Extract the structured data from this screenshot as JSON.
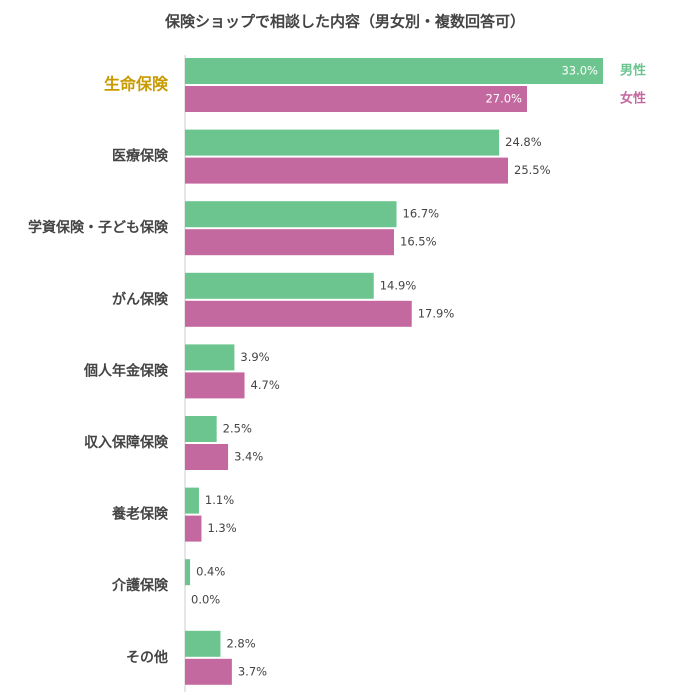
{
  "chart_data": {
    "type": "bar",
    "orientation": "horizontal",
    "title": "保険ショップで相談した内容（男女別・複数回答可）",
    "categories": [
      "生命保険",
      "医療保険",
      "学資保険・子ども保険",
      "がん保険",
      "個人年金保険",
      "収入保障保険",
      "養老保険",
      "介護保険",
      "その他"
    ],
    "series": [
      {
        "name": "男性",
        "color": "#6cc58f",
        "values": [
          33.0,
          24.8,
          16.7,
          14.9,
          3.9,
          2.5,
          1.1,
          0.4,
          2.8
        ],
        "value_labels": [
          "33.0%",
          "24.8%",
          "16.7%",
          "14.9%",
          "3.9%",
          "2.5%",
          "1.1%",
          "0.4%",
          "2.8%"
        ]
      },
      {
        "name": "女性",
        "color": "#c4699f",
        "values": [
          27.0,
          25.5,
          16.5,
          17.9,
          4.7,
          3.4,
          1.3,
          0.0,
          3.7
        ],
        "value_labels": [
          "27.0%",
          "25.5%",
          "16.5%",
          "17.9%",
          "4.7%",
          "3.4%",
          "1.3%",
          "0.0%",
          "3.7%"
        ]
      }
    ]
  }
}
